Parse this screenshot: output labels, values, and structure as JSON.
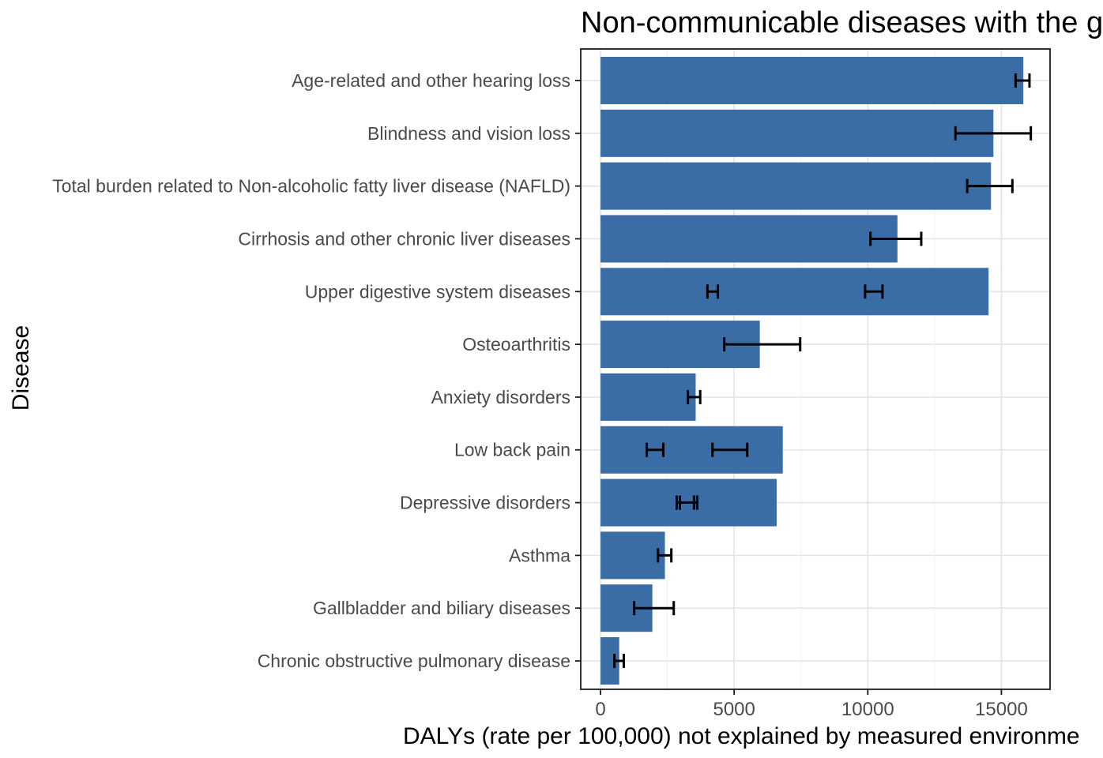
{
  "chart_data": {
    "type": "bar",
    "orientation": "horizontal",
    "title": "Non-communicable diseases with the g",
    "xlabel": "DALYs (rate per 100,000) not explained by measured environme",
    "ylabel": "Disease",
    "xlim": [
      -740,
      16820
    ],
    "x_ticks": [
      0,
      5000,
      10000,
      15000
    ],
    "x_minor_gridlines": [
      2500,
      7500,
      12500
    ],
    "bar_color": "#3A6DA6",
    "error_bar_color": "#000000",
    "grid_major_color": "#E4E4E4",
    "grid_minor_color": "#F1F1F1",
    "panel_border_color": "#1A1A1A",
    "axis_text_color": "#4A4A4A",
    "categories": [
      "Age-related and other hearing loss",
      "Blindness and vision loss",
      "Total burden related to Non-alcoholic fatty liver disease (NAFLD)",
      "Cirrhosis and other chronic liver diseases",
      "Upper digestive system diseases",
      "Osteoarthritis",
      "Anxiety disorders",
      "Low back pain",
      "Depressive disorders",
      "Asthma",
      "Gallbladder and biliary diseases",
      "Chronic obstructive pulmonary disease"
    ],
    "values": [
      15820,
      14700,
      14610,
      11110,
      14520,
      5960,
      3560,
      6820,
      6590,
      2410,
      1940,
      700
    ],
    "error_bars": [
      [
        [
          15530,
          16050
        ]
      ],
      [
        [
          13280,
          16100
        ]
      ],
      [
        [
          13720,
          15410
        ]
      ],
      [
        [
          10100,
          12000
        ]
      ],
      [
        [
          4000,
          4390
        ],
        [
          9900,
          10550
        ]
      ],
      [
        [
          4630,
          7470
        ]
      ],
      [
        [
          3270,
          3730
        ]
      ],
      [
        [
          1730,
          2350
        ],
        [
          4190,
          5490
        ]
      ],
      [
        [
          2850,
          3500
        ],
        [
          2970,
          3620
        ]
      ],
      [
        [
          2150,
          2650
        ]
      ],
      [
        [
          1260,
          2740
        ]
      ],
      [
        [
          520,
          870
        ]
      ]
    ]
  }
}
